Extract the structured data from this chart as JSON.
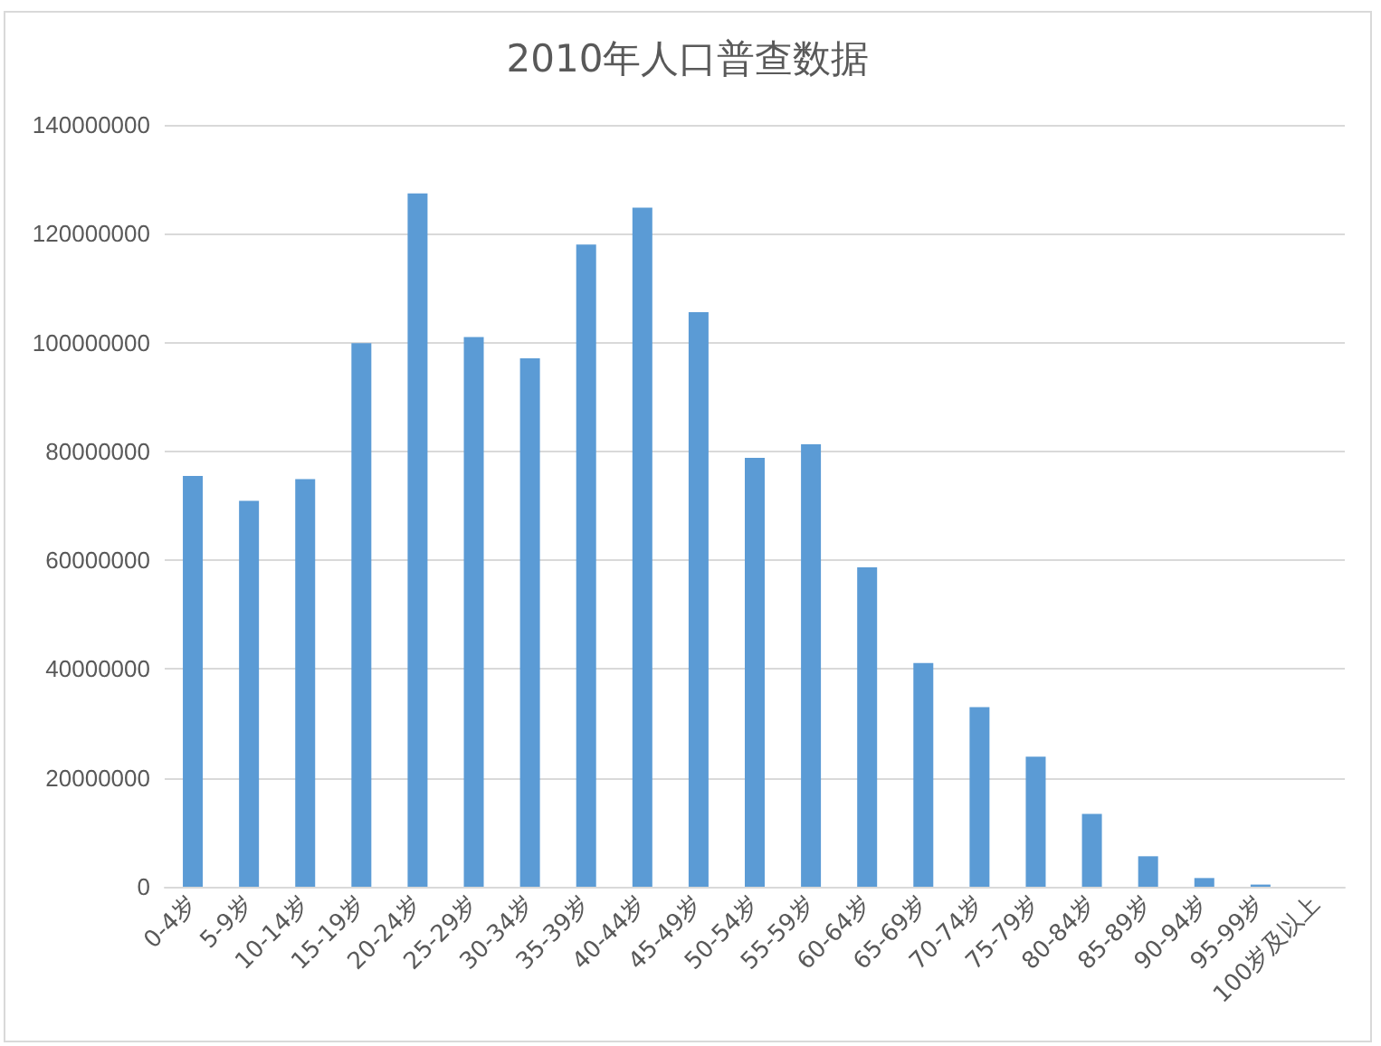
{
  "chart_data": {
    "type": "bar",
    "title": "2010年人口普查数据",
    "categories": [
      "0-4岁",
      "5-9岁",
      "10-14岁",
      "15-19岁",
      "20-24岁",
      "25-29岁",
      "30-34岁",
      "35-39岁",
      "40-44岁",
      "45-49岁",
      "50-54岁",
      "55-59岁",
      "60-64岁",
      "65-69岁",
      "70-74岁",
      "75-79岁",
      "80-84岁",
      "85-89岁",
      "90-94岁",
      "95-99岁",
      "100岁及以上"
    ],
    "values": [
      75500000,
      70900000,
      74900000,
      99900000,
      127400000,
      101000000,
      97100000,
      118000000,
      124800000,
      105600000,
      78800000,
      81300000,
      58700000,
      41100000,
      33000000,
      23900000,
      13400000,
      5600000,
      1600000,
      400000,
      0
    ],
    "color": "#5b9bd5",
    "ylim": [
      0,
      140000000
    ],
    "yticks": [
      0,
      20000000,
      40000000,
      60000000,
      80000000,
      100000000,
      120000000,
      140000000
    ],
    "grid": "y"
  }
}
